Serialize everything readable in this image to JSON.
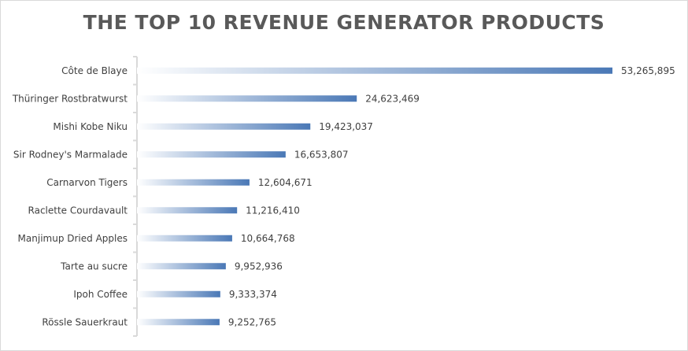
{
  "chart_data": {
    "type": "bar",
    "orientation": "horizontal",
    "title": "THE TOP 10 REVENUE GENERATOR PRODUCTS",
    "categories": [
      "Côte de Blaye",
      "Thüringer Rostbratwurst",
      "Mishi Kobe Niku",
      "Sir Rodney's Marmalade",
      "Carnarvon Tigers",
      "Raclette Courdavault",
      "Manjimup Dried Apples",
      "Tarte au sucre",
      "Ipoh Coffee",
      "Rössle Sauerkraut"
    ],
    "values": [
      53265895,
      24623469,
      19423037,
      16653807,
      12604671,
      11216410,
      10664768,
      9952936,
      9333374,
      9252765
    ],
    "data_labels": [
      "53,265,895",
      "24,623,469",
      "19,423,037",
      "16,653,807",
      "12,604,671",
      "11,216,410",
      "10,664,768",
      "9,952,936",
      "9,333,374",
      "9,252,765"
    ],
    "xlabel": "",
    "ylabel": "",
    "xlim": [
      0,
      53265895
    ],
    "grid": false,
    "legend": "none",
    "bar_gradient": [
      "#ffffff",
      "#4a78b6"
    ],
    "axis_color": "#d9d9d9",
    "label_color": "#404040",
    "title_color": "#595959"
  }
}
